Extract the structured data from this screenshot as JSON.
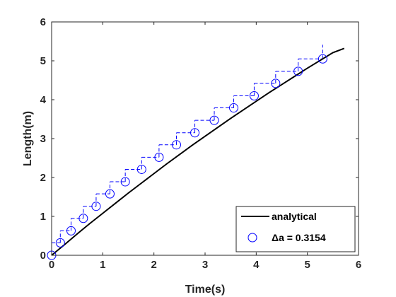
{
  "chart_data": {
    "type": "line",
    "title": "",
    "xlabel": "Time(s)",
    "ylabel": "Length(m)",
    "xlim": [
      0,
      6
    ],
    "ylim": [
      0,
      6
    ],
    "xticks": [
      "0",
      "1",
      "2",
      "3",
      "4",
      "5",
      "6"
    ],
    "yticks": [
      "0",
      "1",
      "2",
      "3",
      "4",
      "5",
      "6"
    ],
    "grid": false,
    "legend_position": "bottom-right",
    "colors": {
      "analytical": "#000000",
      "markers": "#0000ff",
      "axes": "#262626"
    },
    "series": [
      {
        "name": "analytical",
        "style": "solid",
        "x": [
          0,
          0.25,
          0.5,
          0.75,
          1,
          1.25,
          1.5,
          1.75,
          2,
          2.25,
          2.5,
          2.75,
          3,
          3.25,
          3.5,
          3.75,
          4,
          4.25,
          4.5,
          4.75,
          5,
          5.25,
          5.5,
          5.72
        ],
        "y": [
          0,
          0.27,
          0.55,
          0.82,
          1.08,
          1.34,
          1.6,
          1.85,
          2.1,
          2.35,
          2.59,
          2.83,
          3.06,
          3.29,
          3.52,
          3.74,
          3.96,
          4.18,
          4.39,
          4.6,
          4.81,
          5.01,
          5.21,
          5.32
        ]
      },
      {
        "name": "Δa = 0.3154",
        "style": "markers-with-dashed-steps",
        "x": [
          0,
          0.17,
          0.38,
          0.62,
          0.87,
          1.14,
          1.44,
          1.76,
          2.1,
          2.44,
          2.8,
          3.18,
          3.56,
          3.96,
          4.38,
          4.82,
          5.3
        ],
        "y": [
          0,
          0.32,
          0.63,
          0.95,
          1.26,
          1.58,
          1.89,
          2.21,
          2.52,
          2.84,
          3.15,
          3.47,
          3.79,
          4.1,
          4.42,
          4.73,
          5.05
        ]
      }
    ]
  }
}
